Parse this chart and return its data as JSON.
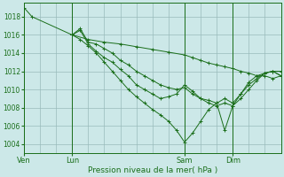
{
  "background_color": "#cce8e8",
  "grid_color": "#99bbbb",
  "line_color": "#1a6e1a",
  "xlabel": "Pression niveau de la mer( hPa )",
  "ylim": [
    1003.0,
    1019.5
  ],
  "xlim": [
    0,
    16
  ],
  "xtick_positions": [
    0,
    3,
    10,
    13
  ],
  "xtick_labels": [
    "Ven",
    "Lun",
    "Sam",
    "Dim"
  ],
  "ytick_positions": [
    1004,
    1006,
    1008,
    1010,
    1012,
    1014,
    1016,
    1018
  ],
  "vlines": [
    0,
    3,
    10,
    13
  ],
  "xgrid_step": 1,
  "lines": [
    {
      "x": [
        0,
        0.5,
        3,
        4,
        5,
        6,
        7,
        8,
        9,
        10,
        10.5,
        11,
        11.5,
        12,
        12.5,
        13,
        13.5,
        14,
        14.5,
        15,
        15.5,
        16
      ],
      "y": [
        1019.0,
        1018.0,
        1016.0,
        1015.5,
        1015.2,
        1015.0,
        1014.7,
        1014.4,
        1014.1,
        1013.8,
        1013.5,
        1013.2,
        1012.9,
        1012.7,
        1012.5,
        1012.3,
        1012.0,
        1011.8,
        1011.5,
        1011.8,
        1012.0,
        1011.5
      ]
    },
    {
      "x": [
        3,
        3.5,
        4,
        4.5,
        5,
        5.5,
        6,
        6.5,
        7,
        7.5,
        8,
        8.5,
        9,
        9.5,
        10,
        10.5,
        11,
        11.5,
        12,
        12.5,
        13,
        13.5,
        14,
        14.5,
        15,
        15.5,
        16
      ],
      "y": [
        1016.0,
        1016.7,
        1015.2,
        1015.0,
        1014.5,
        1014.0,
        1013.2,
        1012.7,
        1012.0,
        1011.5,
        1011.0,
        1010.5,
        1010.2,
        1010.0,
        1010.2,
        1009.5,
        1009.0,
        1008.5,
        1008.2,
        1008.5,
        1008.2,
        1009.0,
        1010.0,
        1011.0,
        1011.8,
        1012.0,
        1011.5
      ]
    },
    {
      "x": [
        3,
        3.5,
        4,
        4.5,
        5,
        5.5,
        6,
        6.5,
        7,
        7.5,
        8,
        8.5,
        9,
        9.5,
        10,
        10.5,
        11,
        11.5,
        12,
        12.5,
        13,
        13.5,
        14,
        14.5,
        15,
        15.5,
        16
      ],
      "y": [
        1016.0,
        1016.5,
        1015.0,
        1014.2,
        1013.5,
        1013.0,
        1012.2,
        1011.5,
        1010.5,
        1010.0,
        1009.5,
        1009.0,
        1009.2,
        1009.5,
        1010.5,
        1009.8,
        1009.0,
        1008.8,
        1008.5,
        1009.0,
        1008.5,
        1009.5,
        1010.5,
        1011.2,
        1011.8,
        1012.0,
        1012.0
      ]
    },
    {
      "x": [
        3,
        3.5,
        4,
        4.5,
        5,
        5.5,
        6,
        6.5,
        7,
        7.5,
        8,
        8.5,
        9,
        9.5,
        10,
        10.5,
        11,
        11.5,
        12,
        12.5,
        13,
        13.5,
        14,
        14.5,
        15,
        15.5,
        16
      ],
      "y": [
        1016.0,
        1015.5,
        1014.8,
        1014.0,
        1013.0,
        1012.0,
        1011.0,
        1010.0,
        1009.2,
        1008.5,
        1007.8,
        1007.2,
        1006.5,
        1005.5,
        1004.2,
        1005.2,
        1006.5,
        1007.8,
        1008.5,
        1005.5,
        1008.2,
        1009.5,
        1010.8,
        1011.5,
        1011.5,
        1011.2,
        1011.5
      ]
    }
  ]
}
